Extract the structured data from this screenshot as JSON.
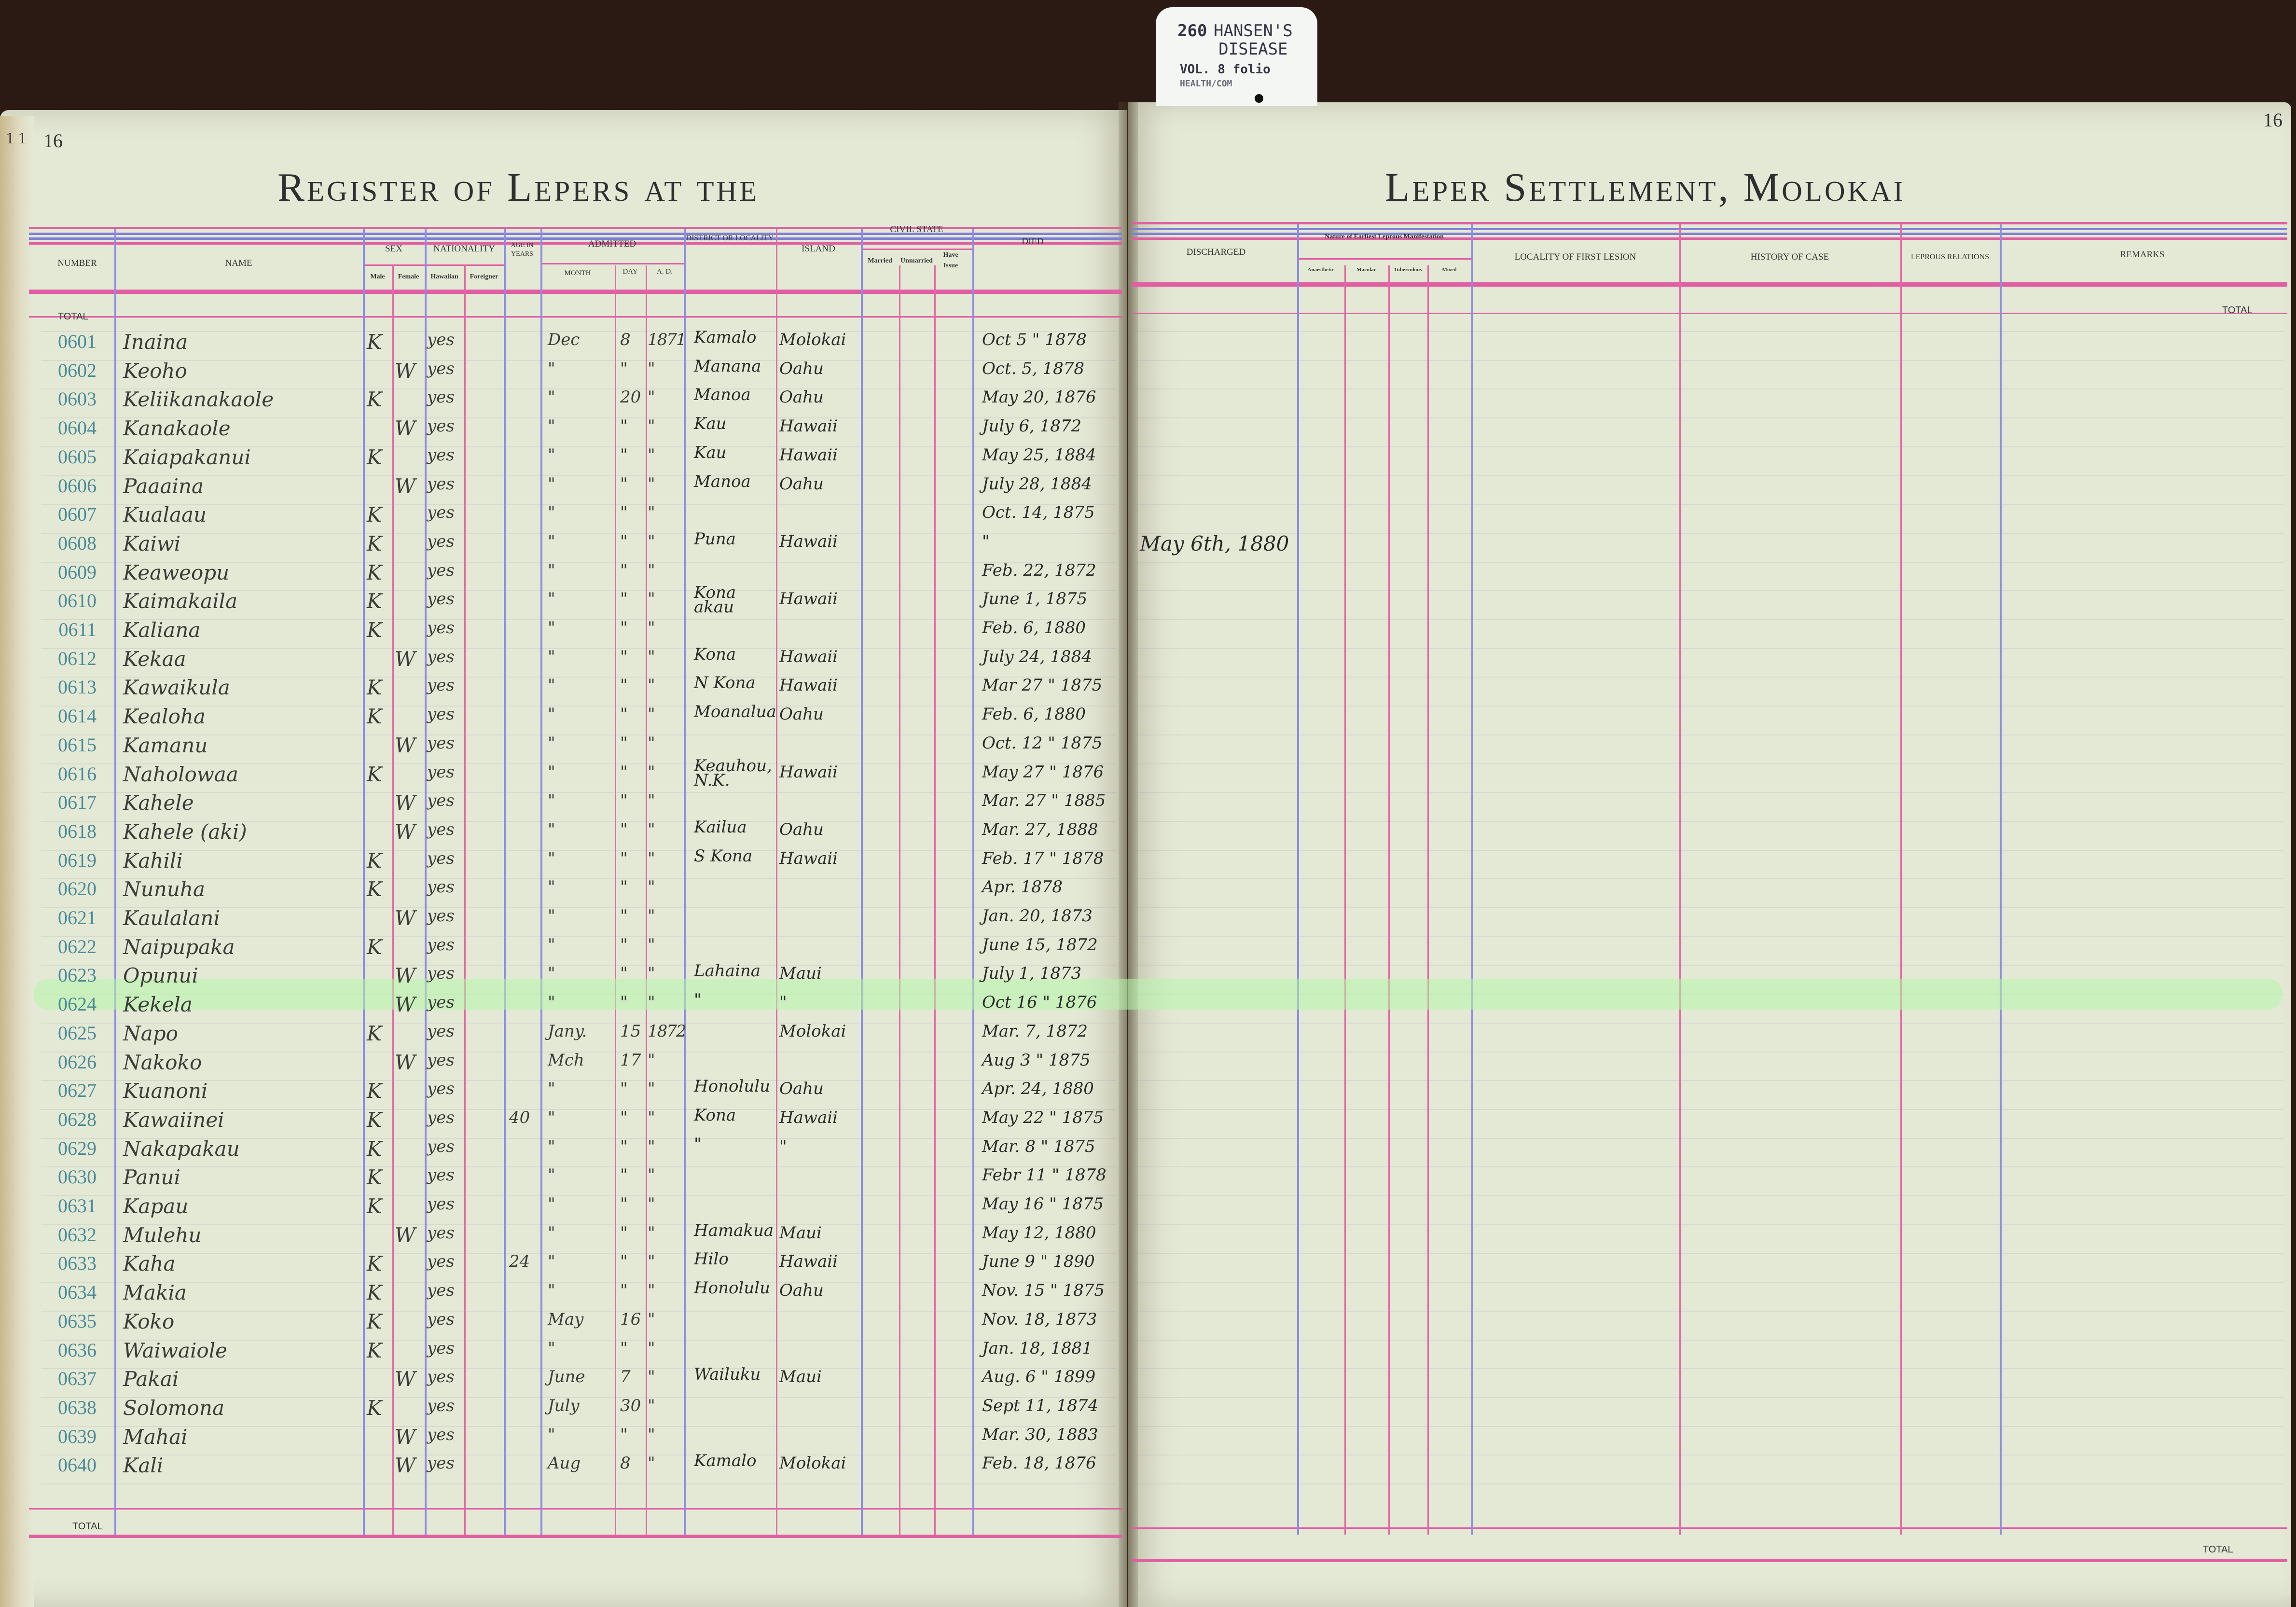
{
  "tag": {
    "code": "260",
    "subject": "HANSEN'S\nDISEASE",
    "volume": "VOL. 8 folio",
    "agency": "HEALTH/COM"
  },
  "left_page": {
    "page_number": "16",
    "edge_numbers": "1 1",
    "title": "Register of Lepers at the",
    "total_label": "TOTAL",
    "headers": {
      "number": "Number",
      "name": "Name",
      "sex": "Sex",
      "male": "Male",
      "female": "Female",
      "nationality": "Nationality",
      "hawaiian": "Hawaiian",
      "foreigner": "Foreigner",
      "age": "Age in Years",
      "age_unit": "Years",
      "admitted": "Admitted",
      "month": "Month",
      "day": "Day",
      "ad": "A. D.",
      "district": "District or Locality",
      "island": "Island",
      "civil_state": "Civil State",
      "married": "Married",
      "unmarried": "Unmarried",
      "have_issue": "Have Issue",
      "died": "Died"
    }
  },
  "right_page": {
    "page_number": "16",
    "title": "Leper Settlement, Molokai",
    "total_label": "TOTAL",
    "headers": {
      "discharged": "Discharged",
      "nature": "Nature of Earliest Leprous Manifestation",
      "anaesthetic": "Anaesthetic",
      "macular": "Macular",
      "tuberculous": "Tuberculous",
      "mixed": "Mixed",
      "locality_first_lesion": "Locality of First Lesion",
      "history": "History of Case",
      "relations": "Leprous Relations",
      "remarks": "Remarks"
    }
  },
  "highlighted_number": "0623",
  "colors": {
    "background": "#2b1a13",
    "paper": "#e4e9d6",
    "rule_pink": "#df5fa2",
    "rule_blue": "#7f7fd6",
    "number_ink": "#4a8a96",
    "highlight": "#b4f5aa"
  },
  "rows": [
    {
      "number": "0601",
      "name": "Inaina",
      "sex": "K",
      "hawaiian": "yes",
      "month": "Dec",
      "day": "8",
      "ad": "1871",
      "district": "Kamalo",
      "island": "Molokai",
      "died": "Oct 5 \" 1878"
    },
    {
      "number": "0602",
      "name": "Keoho",
      "sex": "W",
      "hawaiian": "yes",
      "month": "\"",
      "day": "\"",
      "ad": "\"",
      "district": "Manana",
      "island": "Oahu",
      "died": "Oct. 5, 1878"
    },
    {
      "number": "0603",
      "name": "Keliikanakaole",
      "sex": "K",
      "hawaiian": "yes",
      "month": "\"",
      "day": "20",
      "ad": "\"",
      "district": "Manoa",
      "island": "Oahu",
      "died": "May 20, 1876"
    },
    {
      "number": "0604",
      "name": "Kanakaole",
      "sex": "W",
      "hawaiian": "yes",
      "month": "\"",
      "day": "\"",
      "ad": "\"",
      "district": "Kau",
      "island": "Hawaii",
      "died": "July 6, 1872"
    },
    {
      "number": "0605",
      "name": "Kaiapakanui",
      "sex": "K",
      "hawaiian": "yes",
      "month": "\"",
      "day": "\"",
      "ad": "\"",
      "district": "Kau",
      "island": "Hawaii",
      "died": "May 25, 1884"
    },
    {
      "number": "0606",
      "name": "Paaaina",
      "sex": "W",
      "hawaiian": "yes",
      "month": "\"",
      "day": "\"",
      "ad": "\"",
      "district": "Manoa",
      "island": "Oahu",
      "died": "July 28, 1884"
    },
    {
      "number": "0607",
      "name": "Kualaau",
      "sex": "K",
      "hawaiian": "yes",
      "month": "\"",
      "day": "\"",
      "ad": "\"",
      "district": "",
      "island": "",
      "died": "Oct. 14, 1875"
    },
    {
      "number": "0608",
      "name": "Kaiwi",
      "sex": "K",
      "hawaiian": "yes",
      "month": "\"",
      "day": "\"",
      "ad": "\"",
      "district": "Puna",
      "island": "Hawaii",
      "died": "\"",
      "discharged": "May 6th, 1880"
    },
    {
      "number": "0609",
      "name": "Keaweopu",
      "sex": "K",
      "hawaiian": "yes",
      "month": "\"",
      "day": "\"",
      "ad": "\"",
      "district": "",
      "island": "",
      "died": "Feb. 22, 1872"
    },
    {
      "number": "0610",
      "name": "Kaimakaila",
      "sex": "K",
      "hawaiian": "yes",
      "month": "\"",
      "day": "\"",
      "ad": "\"",
      "district": "Kona akau",
      "island": "Hawaii",
      "died": "June 1, 1875"
    },
    {
      "number": "0611",
      "name": "Kaliana",
      "sex": "K",
      "hawaiian": "yes",
      "month": "\"",
      "day": "\"",
      "ad": "\"",
      "district": "",
      "island": "",
      "died": "Feb. 6, 1880"
    },
    {
      "number": "0612",
      "name": "Kekaa",
      "sex": "W",
      "hawaiian": "yes",
      "month": "\"",
      "day": "\"",
      "ad": "\"",
      "district": "Kona",
      "island": "Hawaii",
      "died": "July 24, 1884"
    },
    {
      "number": "0613",
      "name": "Kawaikula",
      "sex": "K",
      "hawaiian": "yes",
      "month": "\"",
      "day": "\"",
      "ad": "\"",
      "district": "N Kona",
      "island": "Hawaii",
      "died": "Mar 27 \" 1875"
    },
    {
      "number": "0614",
      "name": "Kealoha",
      "sex": "K",
      "hawaiian": "yes",
      "month": "\"",
      "day": "\"",
      "ad": "\"",
      "district": "Moanalua",
      "island": "Oahu",
      "died": "Feb. 6, 1880"
    },
    {
      "number": "0615",
      "name": "Kamanu",
      "sex": "W",
      "hawaiian": "yes",
      "month": "\"",
      "day": "\"",
      "ad": "\"",
      "district": "",
      "island": "",
      "died": "Oct. 12 \" 1875"
    },
    {
      "number": "0616",
      "name": "Naholowaa",
      "sex": "K",
      "hawaiian": "yes",
      "month": "\"",
      "day": "\"",
      "ad": "\"",
      "district": "Keauhou, N.K.",
      "island": "Hawaii",
      "died": "May 27 \" 1876"
    },
    {
      "number": "0617",
      "name": "Kahele",
      "sex": "W",
      "hawaiian": "yes",
      "month": "\"",
      "day": "\"",
      "ad": "\"",
      "district": "",
      "island": "",
      "died": "Mar. 27 \" 1885"
    },
    {
      "number": "0618",
      "name": "Kahele (aki)",
      "sex": "W",
      "hawaiian": "yes",
      "month": "\"",
      "day": "\"",
      "ad": "\"",
      "district": "Kailua",
      "island": "Oahu",
      "died": "Mar. 27, 1888"
    },
    {
      "number": "0619",
      "name": "Kahili",
      "sex": "K",
      "hawaiian": "yes",
      "month": "\"",
      "day": "\"",
      "ad": "\"",
      "district": "S Kona",
      "island": "Hawaii",
      "died": "Feb. 17 \" 1878"
    },
    {
      "number": "0620",
      "name": "Nunuha",
      "sex": "K",
      "hawaiian": "yes",
      "month": "\"",
      "day": "\"",
      "ad": "\"",
      "district": "",
      "island": "",
      "died": "Apr. 1878"
    },
    {
      "number": "0621",
      "name": "Kaulalani",
      "sex": "W",
      "hawaiian": "yes",
      "month": "\"",
      "day": "\"",
      "ad": "\"",
      "district": "",
      "island": "",
      "died": "Jan. 20, 1873"
    },
    {
      "number": "0622",
      "name": "Naipupaka",
      "sex": "K",
      "hawaiian": "yes",
      "month": "\"",
      "day": "\"",
      "ad": "\"",
      "district": "",
      "island": "",
      "died": "June 15, 1872"
    },
    {
      "number": "0623",
      "name": "Opunui",
      "sex": "W",
      "hawaiian": "yes",
      "month": "\"",
      "day": "\"",
      "ad": "\"",
      "district": "Lahaina",
      "island": "Maui",
      "died": "July 1, 1873"
    },
    {
      "number": "0624",
      "name": "Kekela",
      "sex": "W",
      "hawaiian": "yes",
      "month": "\"",
      "day": "\"",
      "ad": "\"",
      "district": "\"",
      "island": "\"",
      "died": "Oct 16 \" 1876"
    },
    {
      "number": "0625",
      "name": "Napo",
      "sex": "K",
      "hawaiian": "yes",
      "month": "Jany.",
      "day": "15",
      "ad": "1872",
      "district": "",
      "island": "Molokai",
      "died": "Mar. 7, 1872"
    },
    {
      "number": "0626",
      "name": "Nakoko",
      "sex": "W",
      "hawaiian": "yes",
      "month": "Mch",
      "day": "17",
      "ad": "\"",
      "district": "",
      "island": "",
      "died": "Aug 3 \" 1875"
    },
    {
      "number": "0627",
      "name": "Kuanoni",
      "sex": "K",
      "hawaiian": "yes",
      "month": "\"",
      "day": "\"",
      "ad": "\"",
      "district": "Honolulu",
      "island": "Oahu",
      "died": "Apr. 24, 1880"
    },
    {
      "number": "0628",
      "name": "Kawaiinei",
      "sex": "K",
      "hawaiian": "yes",
      "age": "40",
      "month": "\"",
      "day": "\"",
      "ad": "\"",
      "district": "Kona",
      "island": "Hawaii",
      "died": "May 22 \" 1875"
    },
    {
      "number": "0629",
      "name": "Nakapakau",
      "sex": "K",
      "hawaiian": "yes",
      "month": "\"",
      "day": "\"",
      "ad": "\"",
      "district": "\"",
      "island": "\"",
      "died": "Mar. 8 \" 1875"
    },
    {
      "number": "0630",
      "name": "Panui",
      "sex": "K",
      "hawaiian": "yes",
      "month": "\"",
      "day": "\"",
      "ad": "\"",
      "district": "",
      "island": "",
      "died": "Febr 11 \" 1878"
    },
    {
      "number": "0631",
      "name": "Kapau",
      "sex": "K",
      "hawaiian": "yes",
      "month": "\"",
      "day": "\"",
      "ad": "\"",
      "district": "",
      "island": "",
      "died": "May 16 \" 1875"
    },
    {
      "number": "0632",
      "name": "Mulehu",
      "sex": "W",
      "hawaiian": "yes",
      "month": "\"",
      "day": "\"",
      "ad": "\"",
      "district": "Hamakua",
      "island": "Maui",
      "died": "May 12, 1880"
    },
    {
      "number": "0633",
      "name": "Kaha",
      "sex": "K",
      "hawaiian": "yes",
      "age": "24",
      "month": "\"",
      "day": "\"",
      "ad": "\"",
      "district": "Hilo",
      "island": "Hawaii",
      "died": "June 9 \" 1890"
    },
    {
      "number": "0634",
      "name": "Makia",
      "sex": "K",
      "hawaiian": "yes",
      "month": "\"",
      "day": "\"",
      "ad": "\"",
      "district": "Honolulu",
      "island": "Oahu",
      "died": "Nov. 15 \" 1875"
    },
    {
      "number": "0635",
      "name": "Koko",
      "sex": "K",
      "hawaiian": "yes",
      "month": "May",
      "day": "16",
      "ad": "\"",
      "district": "",
      "island": "",
      "died": "Nov. 18, 1873"
    },
    {
      "number": "0636",
      "name": "Waiwaiole",
      "sex": "K",
      "hawaiian": "yes",
      "month": "\"",
      "day": "\"",
      "ad": "\"",
      "district": "",
      "island": "",
      "died": "Jan. 18, 1881"
    },
    {
      "number": "0637",
      "name": "Pakai",
      "sex": "W",
      "hawaiian": "yes",
      "month": "June",
      "day": "7",
      "ad": "\"",
      "district": "Wailuku",
      "island": "Maui",
      "died": "Aug. 6 \" 1899"
    },
    {
      "number": "0638",
      "name": "Solomona",
      "sex": "K",
      "hawaiian": "yes",
      "month": "July",
      "day": "30",
      "ad": "\"",
      "district": "",
      "island": "",
      "died": "Sept 11, 1874"
    },
    {
      "number": "0639",
      "name": "Mahai",
      "sex": "W",
      "hawaiian": "yes",
      "month": "\"",
      "day": "\"",
      "ad": "\"",
      "district": "",
      "island": "",
      "died": "Mar. 30, 1883"
    },
    {
      "number": "0640",
      "name": "Kali",
      "sex": "W",
      "hawaiian": "yes",
      "month": "Aug",
      "day": "8",
      "ad": "\"",
      "district": "Kamalo",
      "island": "Molokai",
      "died": "Feb. 18, 1876"
    }
  ]
}
